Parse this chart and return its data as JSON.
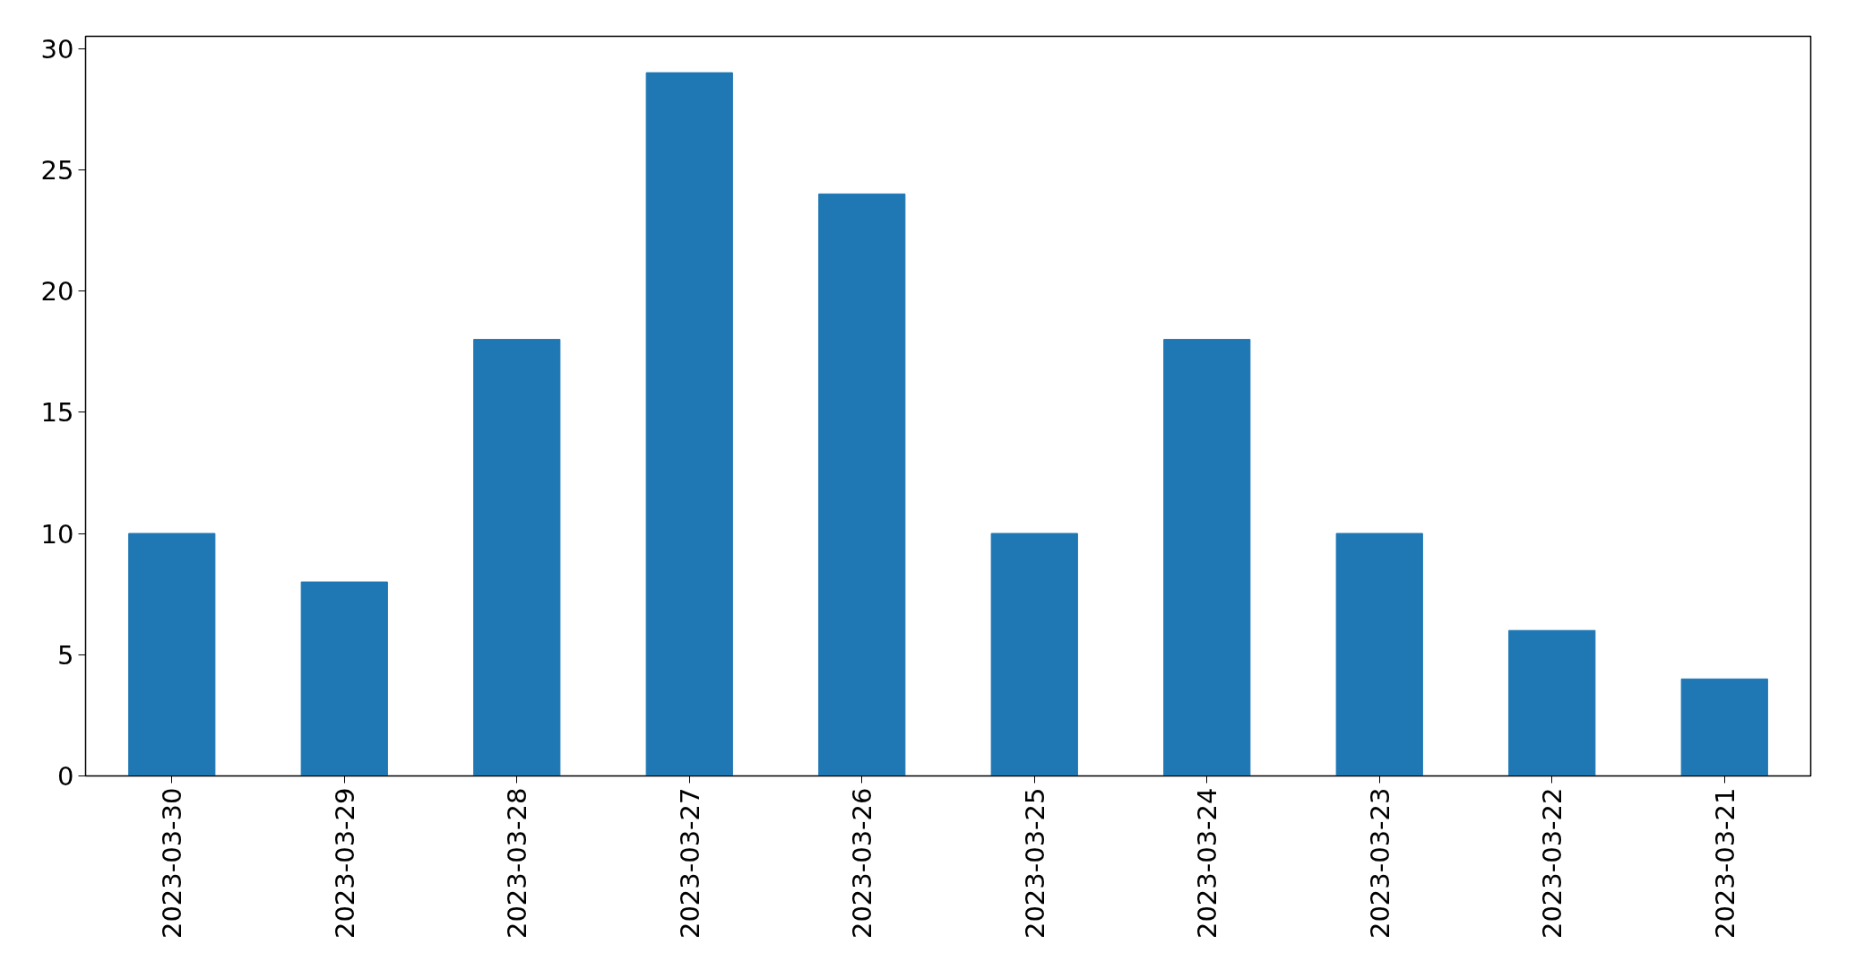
{
  "chart_data": {
    "type": "bar",
    "categories": [
      "2023-03-30",
      "2023-03-29",
      "2023-03-28",
      "2023-03-27",
      "2023-03-26",
      "2023-03-25",
      "2023-03-24",
      "2023-03-23",
      "2023-03-22",
      "2023-03-21"
    ],
    "values": [
      10,
      8,
      18,
      29,
      24,
      10,
      18,
      10,
      6,
      4
    ],
    "color": "#1f77b4",
    "ylim": [
      0,
      30.5
    ],
    "yticks": [
      0,
      5,
      10,
      15,
      20,
      25,
      30
    ],
    "grid": false
  }
}
